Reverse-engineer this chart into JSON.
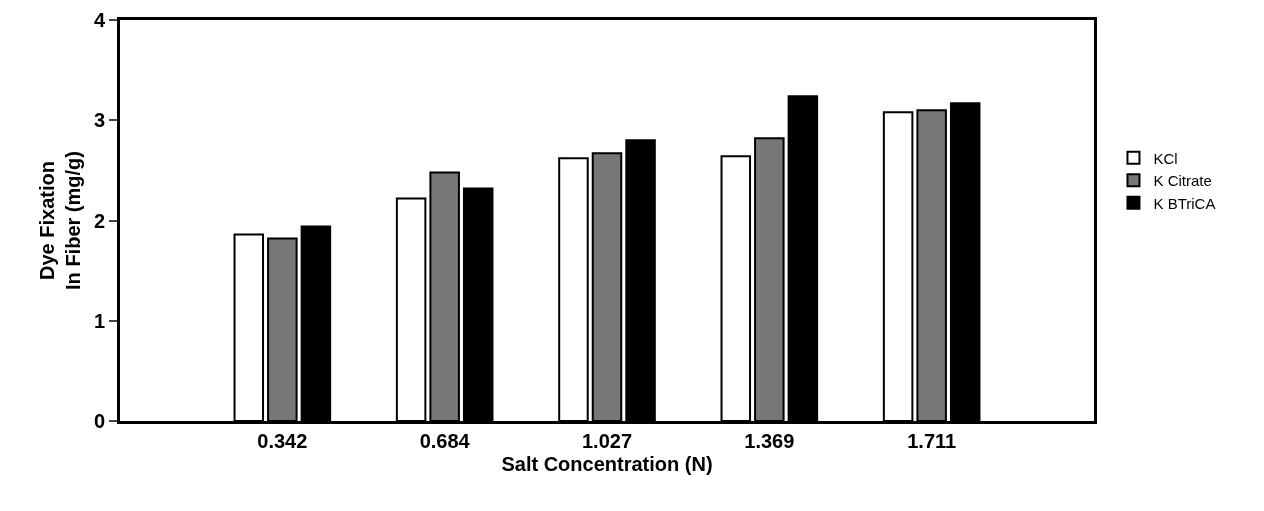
{
  "chart_data": {
    "type": "bar",
    "xlabel": "Salt Concentration (N)",
    "ylabel": "Dye Fixation\nIn Fiber (mg/g)",
    "categories": [
      "0.342",
      "0.684",
      "1.027",
      "1.369",
      "1.711"
    ],
    "series": [
      {
        "name": "KCl",
        "color": "#ffffff",
        "values": [
          1.86,
          2.22,
          2.62,
          2.64,
          3.08
        ]
      },
      {
        "name": "K Citrate",
        "color": "#777777",
        "values": [
          1.82,
          2.48,
          2.67,
          2.82,
          3.1
        ]
      },
      {
        "name": "K BTriCA",
        "color": "#000000",
        "values": [
          1.94,
          2.32,
          2.8,
          3.24,
          3.17
        ]
      }
    ],
    "ylim": [
      0,
      4
    ],
    "yticks": [
      0,
      1,
      2,
      3,
      4
    ],
    "grid": false,
    "legend": "right"
  }
}
